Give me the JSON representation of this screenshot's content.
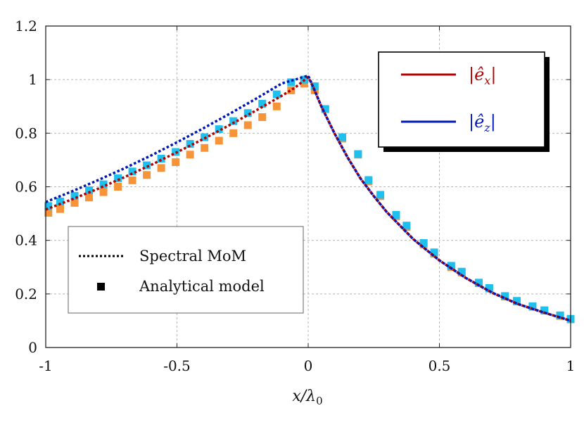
{
  "chart_data": {
    "type": "line",
    "title": "",
    "xlabel": "x/λ0",
    "ylabel": "",
    "xlim": [
      -1,
      1
    ],
    "ylim": [
      0,
      1.2
    ],
    "xticks": [
      -1,
      -0.5,
      0,
      0.5,
      1
    ],
    "xtick_labels": [
      "-1",
      "-0.5",
      "0",
      "0.5",
      "1"
    ],
    "yticks": [
      0,
      0.2,
      0.4,
      0.6,
      0.8,
      1,
      1.2
    ],
    "ytick_labels": [
      "0",
      "0.2",
      "0.4",
      "0.6",
      "0.8",
      "1",
      "1.2"
    ],
    "grid": true,
    "colors": {
      "ex_line": "#b30000",
      "ez_line": "#0018b8",
      "ex_markers": "#f7943a",
      "ez_markers": "#1fbfee"
    },
    "series_legend": {
      "placement": "top-right",
      "entries": [
        {
          "label_prefix": "|ê",
          "subscript": "x",
          "label_suffix": "|",
          "color": "#b30000"
        },
        {
          "label_prefix": "|ê",
          "subscript": "z",
          "label_suffix": "|",
          "color": "#0018b8"
        }
      ]
    },
    "style_legend": {
      "placement": "bottom-left",
      "entries": [
        {
          "label": "Spectral MoM",
          "style": "dotted-line"
        },
        {
          "label": "Analytical model",
          "style": "square-marker"
        }
      ]
    },
    "series": [
      {
        "key": "ex_mom",
        "style": "dotted-line",
        "x": [
          -1,
          -0.9,
          -0.8,
          -0.7,
          -0.6,
          -0.5,
          -0.4,
          -0.3,
          -0.2,
          -0.1,
          -0.05,
          0,
          0.02,
          0.05,
          0.1,
          0.15,
          0.2,
          0.25,
          0.3,
          0.35,
          0.4,
          0.5,
          0.6,
          0.7,
          0.8,
          0.9,
          1
        ],
        "y": [
          0.515,
          0.553,
          0.593,
          0.636,
          0.681,
          0.729,
          0.778,
          0.83,
          0.884,
          0.94,
          0.97,
          1.01,
          0.97,
          0.9,
          0.8,
          0.71,
          0.63,
          0.565,
          0.505,
          0.455,
          0.405,
          0.325,
          0.26,
          0.205,
          0.162,
          0.13,
          0.1
        ]
      },
      {
        "key": "ez_mom",
        "style": "dotted-line",
        "x": [
          -1,
          -0.9,
          -0.8,
          -0.7,
          -0.6,
          -0.5,
          -0.4,
          -0.3,
          -0.2,
          -0.1,
          -0.05,
          0,
          0.02,
          0.05,
          0.1,
          0.15,
          0.2,
          0.25,
          0.3,
          0.35,
          0.4,
          0.5,
          0.6,
          0.7,
          0.8,
          0.9,
          1
        ],
        "y": [
          0.543,
          0.583,
          0.625,
          0.669,
          0.716,
          0.766,
          0.818,
          0.872,
          0.928,
          0.986,
          1.0,
          1.015,
          0.97,
          0.9,
          0.8,
          0.71,
          0.63,
          0.565,
          0.505,
          0.455,
          0.405,
          0.325,
          0.26,
          0.205,
          0.162,
          0.13,
          0.1
        ]
      },
      {
        "key": "ex_analytical",
        "style": "square-marker",
        "x": [
          -0.99,
          -0.945,
          -0.89,
          -0.835,
          -0.78,
          -0.725,
          -0.67,
          -0.615,
          -0.56,
          -0.505,
          -0.45,
          -0.395,
          -0.34,
          -0.285,
          -0.23,
          -0.175,
          -0.12,
          -0.065,
          -0.015,
          0.025,
          0.065,
          0.13,
          0.19,
          0.23,
          0.275,
          0.335,
          0.375,
          0.44,
          0.48,
          0.545,
          0.585,
          0.65,
          0.69,
          0.75,
          0.795,
          0.855,
          0.9,
          0.96,
          1.0
        ],
        "y": [
          0.503,
          0.517,
          0.54,
          0.56,
          0.58,
          0.6,
          0.624,
          0.644,
          0.67,
          0.692,
          0.72,
          0.745,
          0.772,
          0.8,
          0.83,
          0.86,
          0.9,
          0.96,
          0.985,
          0.96,
          0.89,
          0.78,
          0.72,
          0.62,
          0.565,
          0.49,
          0.45,
          0.385,
          0.35,
          0.3,
          0.28,
          0.24,
          0.22,
          0.19,
          0.172,
          0.152,
          0.138,
          0.118,
          0.105
        ]
      },
      {
        "key": "ez_analytical",
        "style": "square-marker",
        "x": [
          -0.99,
          -0.945,
          -0.89,
          -0.835,
          -0.78,
          -0.725,
          -0.67,
          -0.615,
          -0.56,
          -0.505,
          -0.45,
          -0.395,
          -0.34,
          -0.285,
          -0.23,
          -0.175,
          -0.12,
          -0.065,
          -0.015,
          0.025,
          0.065,
          0.13,
          0.19,
          0.23,
          0.275,
          0.335,
          0.375,
          0.44,
          0.48,
          0.545,
          0.585,
          0.65,
          0.69,
          0.75,
          0.795,
          0.855,
          0.9,
          0.96,
          1.0
        ],
        "y": [
          0.528,
          0.545,
          0.566,
          0.587,
          0.609,
          0.632,
          0.657,
          0.68,
          0.705,
          0.73,
          0.76,
          0.785,
          0.815,
          0.845,
          0.875,
          0.91,
          0.945,
          0.99,
          1.0,
          0.975,
          0.89,
          0.785,
          0.722,
          0.625,
          0.57,
          0.495,
          0.455,
          0.39,
          0.355,
          0.305,
          0.283,
          0.242,
          0.222,
          0.192,
          0.174,
          0.154,
          0.139,
          0.12,
          0.107
        ]
      }
    ]
  }
}
